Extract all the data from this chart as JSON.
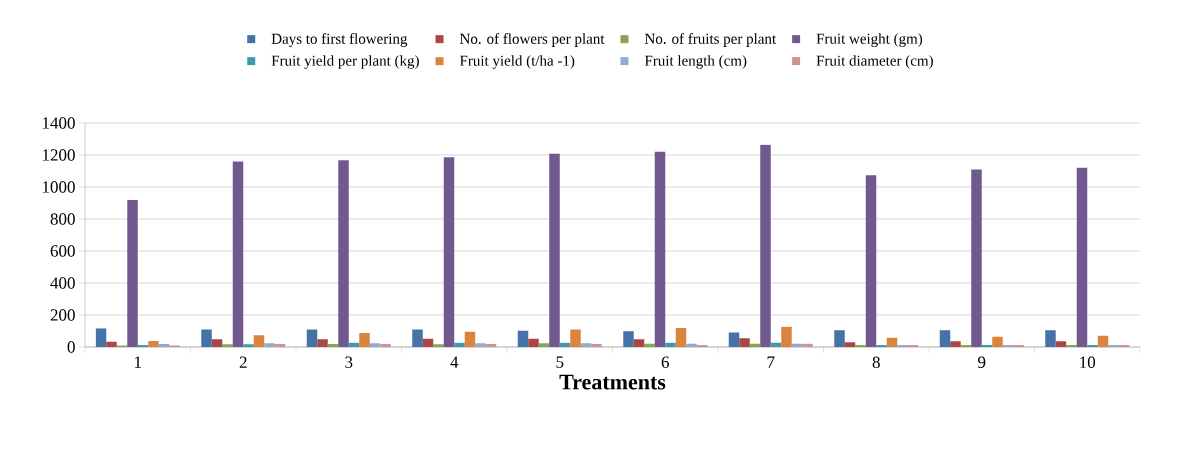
{
  "chart_data": {
    "type": "bar",
    "xlabel": "Treatments",
    "categories": [
      "1",
      "2",
      "3",
      "4",
      "5",
      "6",
      "7",
      "8",
      "9",
      "10"
    ],
    "ylim": [
      0,
      1400
    ],
    "yticks": [
      0,
      200,
      400,
      600,
      800,
      1000,
      1200,
      1400
    ],
    "grid": "y",
    "legend": "top",
    "series": [
      {
        "name": "Days to first flowering",
        "color": "#4572a7",
        "values": [
          117,
          110,
          110,
          110,
          102,
          98,
          90,
          105,
          105,
          105
        ]
      },
      {
        "name": "No. of flowers per plant",
        "color": "#aa4643",
        "values": [
          33,
          48,
          48,
          52,
          52,
          48,
          55,
          29,
          36,
          36
        ]
      },
      {
        "name": "No. of fruits per plant",
        "color": "#89a54e",
        "values": [
          10,
          17,
          19,
          17,
          24,
          21,
          21,
          12,
          12,
          12
        ]
      },
      {
        "name": "Fruit weight (gm)",
        "color": "#71588f",
        "values": [
          919,
          1160,
          1167,
          1186,
          1207,
          1221,
          1264,
          1074,
          1110,
          1121
        ]
      },
      {
        "name": "Fruit yield per plant (kg)",
        "color": "#4198af",
        "values": [
          12,
          17,
          26,
          26,
          26,
          26,
          26,
          12,
          12,
          12
        ]
      },
      {
        "name": "Fruit yield (t/ha -1)",
        "color": "#db843d",
        "values": [
          38,
          74,
          88,
          95,
          110,
          119,
          126,
          57,
          64,
          71
        ]
      },
      {
        "name": "Fruit length (cm)",
        "color": "#93a9cf",
        "values": [
          19,
          24,
          24,
          24,
          24,
          21,
          21,
          12,
          12,
          12
        ]
      },
      {
        "name": "Fruit diameter (cm)",
        "color": "#d19392",
        "values": [
          10,
          19,
          19,
          19,
          19,
          12,
          21,
          12,
          12,
          12
        ]
      }
    ]
  }
}
